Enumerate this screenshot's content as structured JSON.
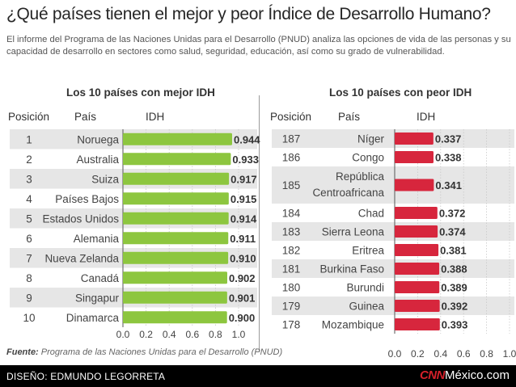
{
  "title": "¿Qué países tienen el mejor y peor Índice de Desarrollo Humano?",
  "subtitle": "El informe del Programa de las Naciones Unidas para el Desarrollo (PNUD) analiza las opciones de vida de las personas y su capacidad de desarrollo en sectores como salud, seguridad, educación, así como su grado de vulnerabilidad.",
  "colors": {
    "best": "#8dc63f",
    "worst": "#d7263d",
    "stripe": "#e6e6e6"
  },
  "chart_data": [
    {
      "type": "bar",
      "orientation": "horizontal",
      "title": "Los 10 países con mejor IDH",
      "column_headers": {
        "position": "Posición",
        "country": "País",
        "value": "IDH"
      },
      "positions": [
        "1",
        "2",
        "3",
        "4",
        "5",
        "6",
        "7",
        "8",
        "9",
        "10"
      ],
      "categories": [
        "Noruega",
        "Australia",
        "Suiza",
        "Países Bajos",
        "Estados Unidos",
        "Alemania",
        "Nueva Zelanda",
        "Canadá",
        "Singapur",
        "Dinamarca"
      ],
      "values": [
        0.944,
        0.933,
        0.917,
        0.915,
        0.914,
        0.911,
        0.91,
        0.902,
        0.901,
        0.9
      ],
      "labels": [
        "0.944",
        "0.933",
        "0.917",
        "0.915",
        "0.914",
        "0.911",
        "0.910",
        "0.902",
        "0.901",
        "0.900"
      ],
      "xlim": [
        0,
        1
      ],
      "ticks": [
        "0.0",
        "0.2",
        "0.4",
        "0.6",
        "0.8",
        "1.0"
      ]
    },
    {
      "type": "bar",
      "orientation": "horizontal",
      "title": "Los 10 países con peor IDH",
      "column_headers": {
        "position": "Posición",
        "country": "País",
        "value": "IDH"
      },
      "positions": [
        "187",
        "186",
        "185",
        "184",
        "183",
        "182",
        "181",
        "180",
        "179",
        "178"
      ],
      "categories": [
        "Níger",
        "Congo",
        "República Centroafricana",
        "Chad",
        "Sierra Leona",
        "Eritrea",
        "Burkina Faso",
        "Burundi",
        "Guinea",
        "Mozambique"
      ],
      "values": [
        0.337,
        0.338,
        0.341,
        0.372,
        0.374,
        0.381,
        0.388,
        0.389,
        0.392,
        0.393
      ],
      "labels": [
        "0.337",
        "0.338",
        "0.341",
        "0.372",
        "0.374",
        "0.381",
        "0.388",
        "0.389",
        "0.392",
        "0.393"
      ],
      "xlim": [
        0,
        1
      ],
      "ticks": [
        "0.0",
        "0.2",
        "0.4",
        "0.6",
        "0.8",
        "1.0"
      ]
    }
  ],
  "source_label": "Fuente:",
  "source_text": "Programa de las Naciones Unidas para el Desarrollo (PNUD)",
  "credit": "DISEÑO: EDMUNDO LEGORRETA",
  "brand_cnn": "CNN",
  "brand_site": "México.com"
}
